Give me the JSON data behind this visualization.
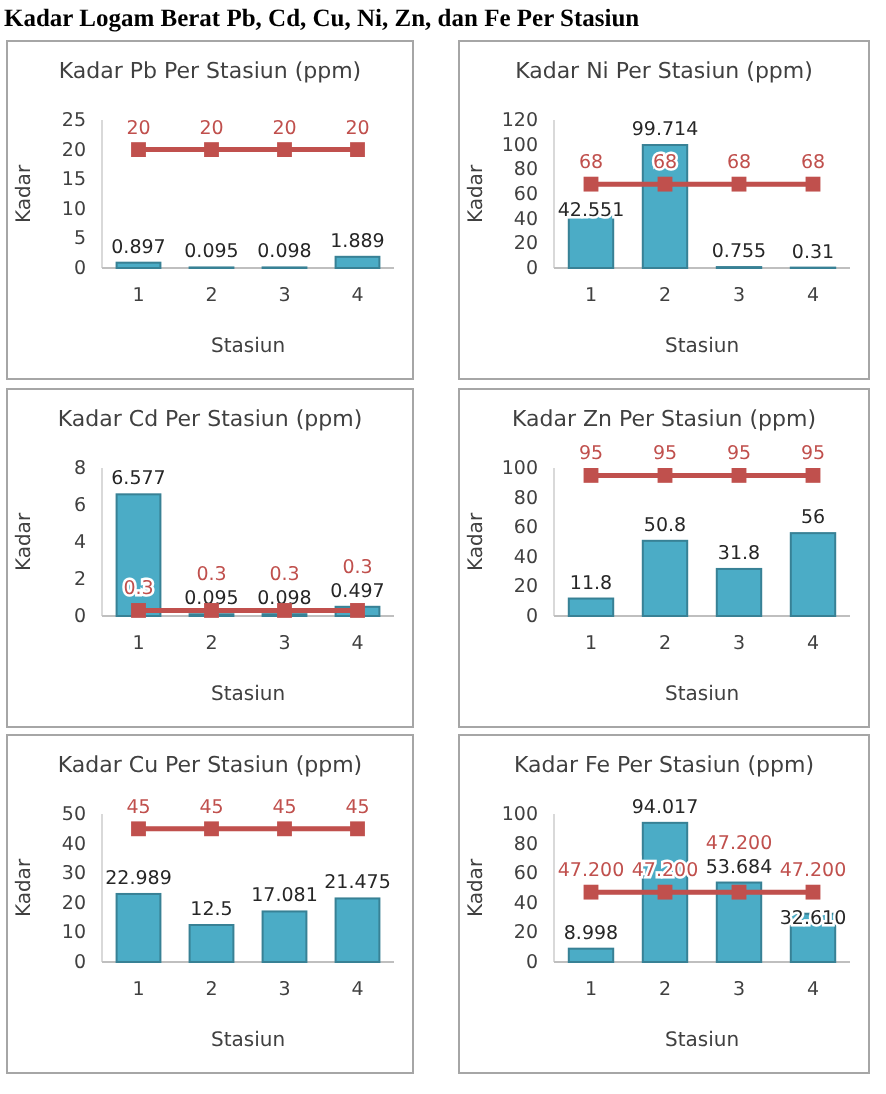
{
  "chart_data": [
    {
      "type": "other",
      "title": "Kadar Logam Berat Pb, Cd, Cu, Ni, Zn, dan Fe Per Stasiun"
    },
    {
      "type": "bar",
      "title": "Kadar Pb Per Stasiun (ppm)",
      "xlabel": "Stasiun",
      "ylabel": "Kadar",
      "categories": [
        "1",
        "2",
        "3",
        "4"
      ],
      "ylim": [
        0,
        25
      ],
      "yticks": [
        0,
        5,
        10,
        15,
        20,
        25
      ],
      "series": [
        {
          "type": "bar",
          "color": "#4bacc6",
          "values": [
            0.897,
            0.095,
            0.098,
            1.889
          ],
          "value_labels": [
            "0.897",
            "0.095",
            "0.098",
            "1.889"
          ]
        },
        {
          "type": "line",
          "color": "#c0504d",
          "marker": "square",
          "line_style": "solid",
          "values": [
            20,
            20,
            20,
            20
          ],
          "value_labels": [
            "20",
            "20",
            "20",
            "20"
          ]
        }
      ]
    },
    {
      "type": "bar",
      "title": "Kadar Ni Per Stasiun (ppm)",
      "xlabel": "Stasiun",
      "ylabel": "Kadar",
      "categories": [
        "1",
        "2",
        "3",
        "4"
      ],
      "ylim": [
        0,
        120
      ],
      "yticks": [
        0,
        20,
        40,
        60,
        80,
        100,
        120
      ],
      "series": [
        {
          "type": "bar",
          "color": "#4bacc6",
          "values": [
            42.551,
            99.714,
            0.755,
            0.31
          ],
          "value_labels": [
            "42.551",
            "99.714",
            "0.755",
            "0.31"
          ]
        },
        {
          "type": "line",
          "color": "#c0504d",
          "marker": "square",
          "line_style": "solid",
          "values": [
            68,
            68,
            68,
            68
          ],
          "value_labels": [
            "68",
            "68",
            "68",
            "68"
          ]
        }
      ]
    },
    {
      "type": "bar",
      "title": "Kadar Cd Per Stasiun (ppm)",
      "xlabel": "Stasiun",
      "ylabel": "Kadar",
      "categories": [
        "1",
        "2",
        "3",
        "4"
      ],
      "ylim": [
        0,
        8
      ],
      "yticks": [
        0,
        2,
        4,
        6,
        8
      ],
      "series": [
        {
          "type": "bar",
          "color": "#4bacc6",
          "values": [
            6.577,
            0.095,
            0.098,
            0.497
          ],
          "value_labels": [
            "6.577",
            "0.095",
            "0.098",
            "0.497"
          ]
        },
        {
          "type": "line",
          "color": "#c0504d",
          "marker": "square",
          "line_style": "solid",
          "values": [
            0.3,
            0.3,
            0.3,
            0.3
          ],
          "value_labels": [
            "0.3",
            "0.3",
            "0.3",
            "0.3"
          ]
        }
      ]
    },
    {
      "type": "bar",
      "title": "Kadar Zn Per Stasiun (ppm)",
      "xlabel": "Stasiun",
      "ylabel": "Kadar",
      "categories": [
        "1",
        "2",
        "3",
        "4"
      ],
      "ylim": [
        0,
        100
      ],
      "yticks": [
        0,
        20,
        40,
        60,
        80,
        100
      ],
      "series": [
        {
          "type": "bar",
          "color": "#4bacc6",
          "values": [
            11.8,
            50.8,
            31.8,
            56
          ],
          "value_labels": [
            "11.8",
            "50.8",
            "31.8",
            "56"
          ]
        },
        {
          "type": "line",
          "color": "#c0504d",
          "marker": "square",
          "line_style": "solid",
          "values": [
            95,
            95,
            95,
            95
          ],
          "value_labels": [
            "95",
            "95",
            "95",
            "95"
          ]
        }
      ]
    },
    {
      "type": "bar",
      "title": "Kadar Cu Per Stasiun (ppm)",
      "xlabel": "Stasiun",
      "ylabel": "Kadar",
      "categories": [
        "1",
        "2",
        "3",
        "4"
      ],
      "ylim": [
        0,
        50
      ],
      "yticks": [
        0,
        10,
        20,
        30,
        40,
        50
      ],
      "series": [
        {
          "type": "bar",
          "color": "#4bacc6",
          "values": [
            22.989,
            12.5,
            17.081,
            21.475
          ],
          "value_labels": [
            "22.989",
            "12.5",
            "17.081",
            "21.475"
          ]
        },
        {
          "type": "line",
          "color": "#c0504d",
          "marker": "square",
          "line_style": "solid",
          "values": [
            45,
            45,
            45,
            45
          ],
          "value_labels": [
            "45",
            "45",
            "45",
            "45"
          ]
        }
      ]
    },
    {
      "type": "bar",
      "title": "Kadar Fe Per Stasiun (ppm)",
      "xlabel": "Stasiun",
      "ylabel": "Kadar",
      "categories": [
        "1",
        "2",
        "3",
        "4"
      ],
      "ylim": [
        0,
        100
      ],
      "yticks": [
        0,
        20,
        40,
        60,
        80,
        100
      ],
      "series": [
        {
          "type": "bar",
          "color": "#4bacc6",
          "values": [
            8.998,
            94.017,
            53.684,
            32.61
          ],
          "value_labels": [
            "8.998",
            "94.017",
            "53.684",
            "32.610"
          ]
        },
        {
          "type": "line",
          "color": "#c0504d",
          "marker": "square",
          "line_style": "solid",
          "values": [
            47.2,
            47.2,
            47.2,
            47.2
          ],
          "value_labels": [
            "47.200",
            "47.200",
            "47.200",
            "47.200"
          ]
        }
      ]
    }
  ]
}
